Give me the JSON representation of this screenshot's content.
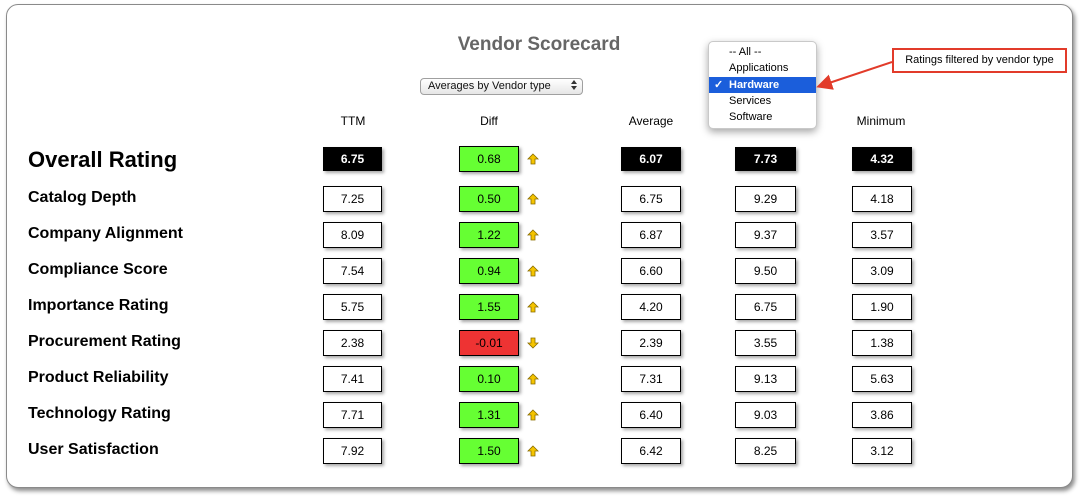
{
  "title": "Vendor Scorecard",
  "selector": {
    "value": "Averages by Vendor type"
  },
  "dropdown": {
    "options": [
      "-- All --",
      "Applications",
      "Hardware",
      "Services",
      "Software"
    ],
    "selected": "Hardware",
    "check": "✓"
  },
  "callout": {
    "text": "Ratings filtered by vendor type"
  },
  "columns": [
    "TTM",
    "Diff",
    "Average",
    "Minimum"
  ],
  "overall": {
    "label": "Overall Rating",
    "ttm": "6.75",
    "diff": "0.68",
    "average": "6.07",
    "max": "7.73",
    "minimum": "4.32"
  },
  "rows": [
    {
      "label": "Catalog Depth",
      "ttm": "7.25",
      "diff": "0.50",
      "average": "6.75",
      "max": "9.29",
      "minimum": "4.18"
    },
    {
      "label": "Company Alignment",
      "ttm": "8.09",
      "diff": "1.22",
      "average": "6.87",
      "max": "9.37",
      "minimum": "3.57"
    },
    {
      "label": "Compliance Score",
      "ttm": "7.54",
      "diff": "0.94",
      "average": "6.60",
      "max": "9.50",
      "minimum": "3.09"
    },
    {
      "label": "Importance Rating",
      "ttm": "5.75",
      "diff": "1.55",
      "average": "4.20",
      "max": "6.75",
      "minimum": "1.90"
    },
    {
      "label": "Procurement Rating",
      "ttm": "2.38",
      "diff": "-0.01",
      "average": "2.39",
      "max": "3.55",
      "minimum": "1.38"
    },
    {
      "label": "Product Reliability",
      "ttm": "7.41",
      "diff": "0.10",
      "average": "7.31",
      "max": "9.13",
      "minimum": "5.63"
    },
    {
      "label": "Technology Rating",
      "ttm": "7.71",
      "diff": "1.31",
      "average": "6.40",
      "max": "9.03",
      "minimum": "3.86"
    },
    {
      "label": "User Satisfaction",
      "ttm": "7.92",
      "diff": "1.50",
      "average": "6.42",
      "max": "8.25",
      "minimum": "3.12"
    }
  ],
  "colors": {
    "positive": "#66ff33",
    "negative": "#ee3333",
    "arrow": "#f5c400",
    "callout": "#e23b2a",
    "highlight": "#1b5edb"
  },
  "icons": {
    "up": "arrow-up-icon",
    "down": "arrow-down-icon",
    "select": "chevron-updown-icon"
  }
}
